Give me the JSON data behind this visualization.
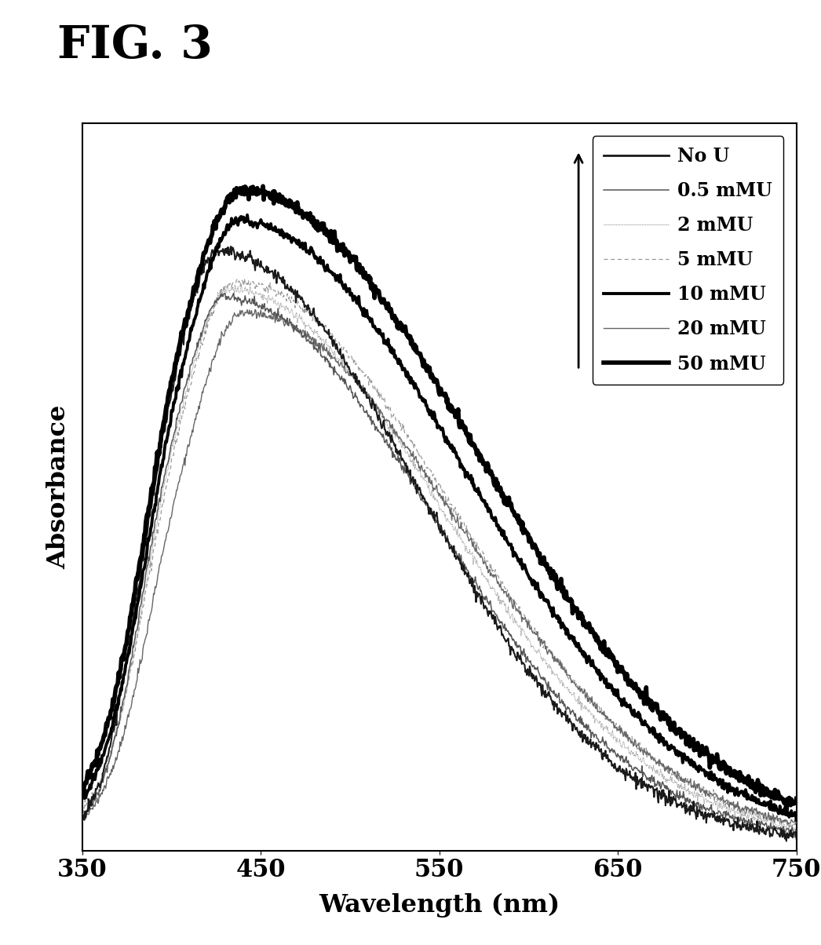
{
  "title": "FIG. 3",
  "xlabel": "Wavelength (nm)",
  "ylabel": "Absorbance",
  "x_min": 350,
  "x_max": 750,
  "x_ticks": [
    350,
    450,
    550,
    650,
    750
  ],
  "legend_labels": [
    "No U",
    "0.5mMU",
    "2mMU",
    "5mMU",
    "10mMU",
    "20mMU",
    "50mMU"
  ],
  "background_color": "#ffffff"
}
